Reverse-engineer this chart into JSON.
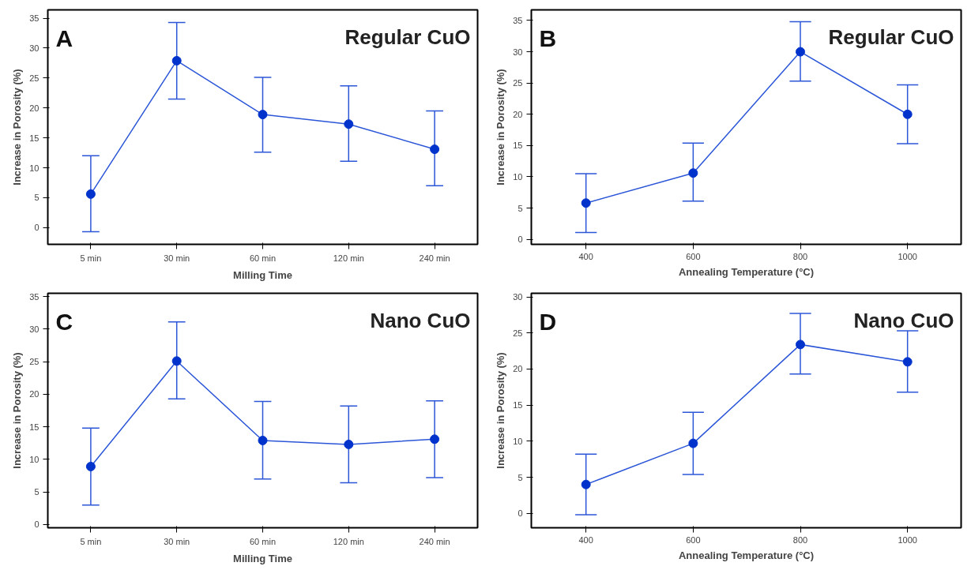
{
  "chart_data": [
    {
      "type": "line",
      "xlabel": "Milling Time",
      "ylabel": "Increase in Porosity (%)",
      "annotations": [
        "A",
        "Regular CuO"
      ],
      "categories": [
        "5 min",
        "30 min",
        "60 min",
        "120 min",
        "240 min"
      ],
      "series": [
        {
          "color": "#2c56d8",
          "values": [
            5.6,
            27.9,
            18.9,
            17.3,
            13.1
          ],
          "errors": [
            [
              -0.7,
              12.0
            ],
            [
              21.5,
              34.3
            ],
            [
              12.6,
              25.1
            ],
            [
              11.1,
              23.7
            ],
            [
              7.0,
              19.5
            ]
          ]
        }
      ],
      "ylim": [
        -2.8,
        36.4
      ],
      "yticks": [
        0,
        5,
        10,
        15,
        20,
        25,
        30,
        35
      ],
      "grid": false,
      "marker": "circle",
      "line_style": "solid"
    },
    {
      "type": "line",
      "xlabel": "Annealing Temperature (°C)",
      "ylabel": "Increase in Porosity (%)",
      "annotations": [
        "B",
        "Regular CuO"
      ],
      "x": [
        400,
        600,
        800,
        1000
      ],
      "series": [
        {
          "color": "#2c56d8",
          "values": [
            5.8,
            10.6,
            30.0,
            20.0
          ],
          "errors": [
            [
              1.1,
              10.5
            ],
            [
              6.1,
              15.4
            ],
            [
              25.3,
              34.8
            ],
            [
              15.3,
              24.7
            ]
          ]
        }
      ],
      "xlim": [
        298,
        1100
      ],
      "xticks": [
        400,
        600,
        800,
        1000
      ],
      "ylim": [
        -0.8,
        36.7
      ],
      "yticks": [
        0,
        5,
        10,
        15,
        20,
        25,
        30,
        35
      ],
      "grid": false,
      "marker": "circle",
      "line_style": "solid"
    },
    {
      "type": "line",
      "xlabel": "Milling Time",
      "ylabel": "Increase in Porosity (%)",
      "annotations": [
        "C",
        "Nano CuO"
      ],
      "categories": [
        "5 min",
        "30 min",
        "60 min",
        "120 min",
        "240 min"
      ],
      "series": [
        {
          "color": "#2c56d8",
          "values": [
            8.9,
            25.1,
            12.9,
            12.3,
            13.1
          ],
          "errors": [
            [
              3.0,
              14.8
            ],
            [
              19.3,
              31.1
            ],
            [
              7.0,
              18.9
            ],
            [
              6.4,
              18.2
            ],
            [
              7.2,
              19.0
            ]
          ]
        }
      ],
      "ylim": [
        -0.5,
        35.5
      ],
      "yticks": [
        0,
        5,
        10,
        15,
        20,
        25,
        30,
        35
      ],
      "grid": false,
      "marker": "circle",
      "line_style": "solid"
    },
    {
      "type": "line",
      "xlabel": "Annealing Temperature (°C)",
      "ylabel": "Increase in Porosity (%)",
      "annotations": [
        "D",
        "Nano CuO"
      ],
      "x": [
        400,
        600,
        800,
        1000
      ],
      "series": [
        {
          "color": "#2c56d8",
          "values": [
            4.0,
            9.7,
            23.4,
            21.0
          ],
          "errors": [
            [
              -0.2,
              8.2
            ],
            [
              5.4,
              14.0
            ],
            [
              19.3,
              27.7
            ],
            [
              16.8,
              25.3
            ]
          ]
        }
      ],
      "xlim": [
        298,
        1100
      ],
      "xticks": [
        400,
        600,
        800,
        1000
      ],
      "ylim": [
        -2.0,
        30.5
      ],
      "yticks": [
        0,
        5,
        10,
        15,
        20,
        25,
        30
      ],
      "grid": false,
      "marker": "circle",
      "line_style": "solid"
    }
  ]
}
